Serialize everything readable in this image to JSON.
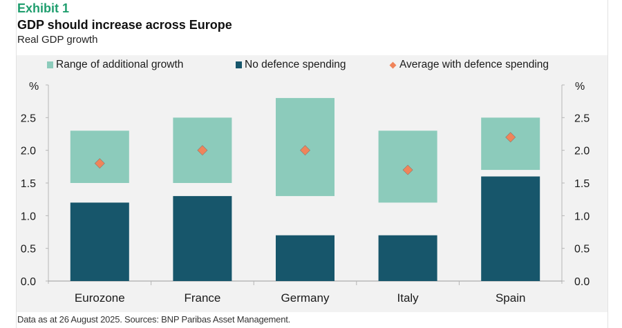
{
  "header": {
    "exhibit": "Exhibit 1",
    "title": "GDP should increase across Europe",
    "subtitle": "Real GDP growth"
  },
  "footer": {
    "note": "Data as at 26 August 2025.  Sources: BNP Paribas Asset Management."
  },
  "colors": {
    "range": "#8ccbbb",
    "no_defence": "#17566b",
    "average": "#f0845a",
    "exhibit": "#1f9e6e",
    "panel_bg": "#f2f2f2",
    "axis": "#b5b5b5"
  },
  "chart_data": {
    "type": "bar",
    "title": "GDP should increase across Europe",
    "subtitle": "Real GDP growth",
    "categories": [
      "Eurozone",
      "France",
      "Germany",
      "Italy",
      "Spain"
    ],
    "series": [
      {
        "name": "Range of additional growth",
        "kind": "floating-bar",
        "low": [
          1.5,
          1.5,
          1.3,
          1.2,
          1.7
        ],
        "high": [
          2.3,
          2.5,
          2.8,
          2.3,
          2.5
        ]
      },
      {
        "name": "No defence spending",
        "kind": "bar",
        "values": [
          1.2,
          1.3,
          0.7,
          0.7,
          1.6
        ]
      },
      {
        "name": "Average with defence spending",
        "kind": "marker",
        "values": [
          1.8,
          2.0,
          2.0,
          1.7,
          2.2
        ]
      }
    ],
    "legend": [
      "Range of additional growth",
      "No defence spending",
      "Average with defence spending"
    ],
    "legend_position": "top",
    "xlabel": "",
    "ylabel_left": "%",
    "ylabel_right": "%",
    "ylim": [
      0,
      3.0
    ],
    "yticks": [
      0.0,
      0.5,
      1.0,
      1.5,
      2.0,
      2.5
    ],
    "ytick_labels": [
      "0.0",
      "0.5",
      "1.0",
      "1.5",
      "2.0",
      "2.5"
    ],
    "grid": false
  }
}
